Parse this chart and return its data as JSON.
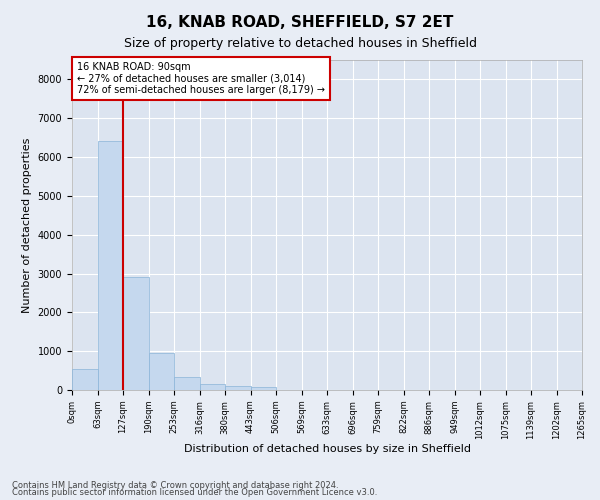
{
  "title": "16, KNAB ROAD, SHEFFIELD, S7 2ET",
  "subtitle": "Size of property relative to detached houses in Sheffield",
  "xlabel": "Distribution of detached houses by size in Sheffield",
  "ylabel": "Number of detached properties",
  "footnote1": "Contains HM Land Registry data © Crown copyright and database right 2024.",
  "footnote2": "Contains public sector information licensed under the Open Government Licence v3.0.",
  "bar_values": [
    550,
    6420,
    2920,
    960,
    330,
    150,
    100,
    70,
    0,
    0,
    0,
    0,
    0,
    0,
    0,
    0,
    0,
    0,
    0,
    0
  ],
  "tick_labels": [
    "0sqm",
    "63sqm",
    "127sqm",
    "190sqm",
    "253sqm",
    "316sqm",
    "380sqm",
    "443sqm",
    "506sqm",
    "569sqm",
    "633sqm",
    "696sqm",
    "759sqm",
    "822sqm",
    "886sqm",
    "949sqm",
    "1012sqm",
    "1075sqm",
    "1139sqm",
    "1202sqm",
    "1265sqm"
  ],
  "bar_color": "#c5d8ee",
  "bar_edge_color": "#8ab4d8",
  "bg_color": "#e8edf5",
  "plot_bg_color": "#dce4f0",
  "grid_color": "#ffffff",
  "property_line_x": 1.5,
  "annotation_text": "16 KNAB ROAD: 90sqm\n← 27% of detached houses are smaller (3,014)\n72% of semi-detached houses are larger (8,179) →",
  "annotation_box_color": "#ffffff",
  "annotation_box_edge_color": "#cc0000",
  "property_line_color": "#cc0000",
  "ylim": [
    0,
    8500
  ],
  "yticks": [
    0,
    1000,
    2000,
    3000,
    4000,
    5000,
    6000,
    7000,
    8000
  ],
  "title_fontsize": 11,
  "subtitle_fontsize": 9,
  "ylabel_fontsize": 8,
  "xlabel_fontsize": 8,
  "tick_fontsize": 6,
  "annotation_fontsize": 7,
  "footnote_fontsize": 6
}
